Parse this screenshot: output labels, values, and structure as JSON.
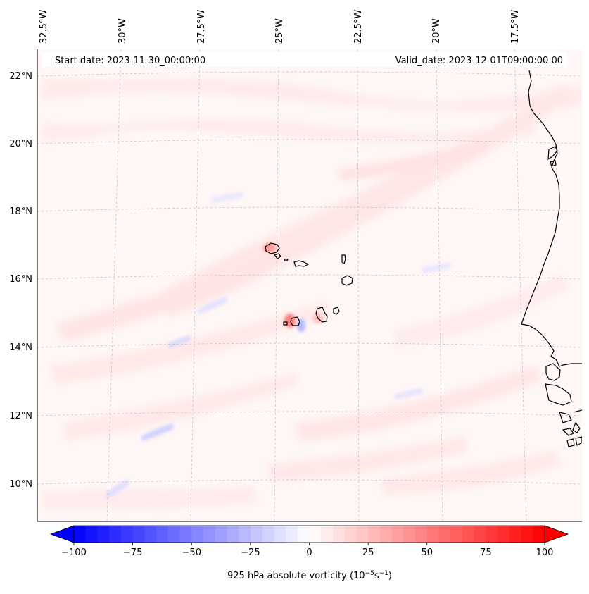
{
  "header": {
    "start_date": "Start date: 2023-11-30_00:00:00",
    "valid_date": "Valid_date: 2023-12-01T09:00:00.00"
  },
  "map": {
    "lon_labels": [
      "32.5°W",
      "30°W",
      "27.5°W",
      "25°W",
      "22.5°W",
      "20°W",
      "17.5°W"
    ],
    "lat_labels": [
      "22°N",
      "20°N",
      "18°N",
      "16°N",
      "14°N",
      "12°N",
      "10°N"
    ],
    "field": "925 hPa absolute vorticity",
    "background_color": "#fff6f6",
    "coastline_color": "#000000"
  },
  "colorbar": {
    "ticks": [
      "−100",
      "−75",
      "−50",
      "−25",
      "0",
      "25",
      "50",
      "75",
      "100"
    ],
    "tick_values": [
      -100,
      -75,
      -50,
      -25,
      0,
      25,
      50,
      75,
      100
    ],
    "range": [
      -100,
      100
    ],
    "extend": "both",
    "colormap": "bwr",
    "label_prefix": "925 hPa absolute vorticity (10",
    "label_exp1": "−5",
    "label_mid": "s",
    "label_exp2": "−1",
    "label_suffix": ")"
  }
}
